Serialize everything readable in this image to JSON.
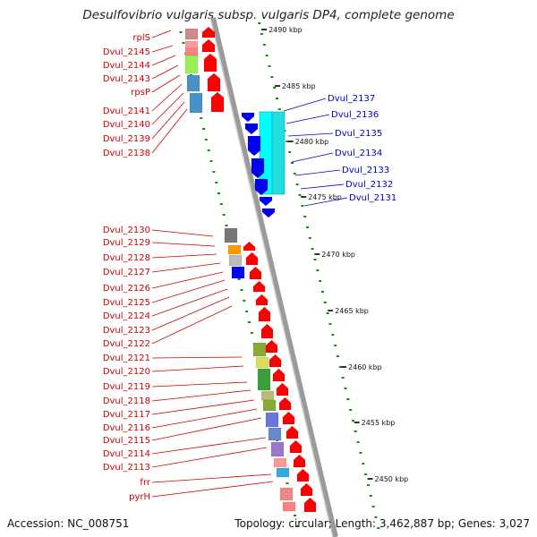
{
  "title": "Desulfovibrio vulgaris subsp. vulgaris DP4, complete genome",
  "footer": {
    "accession": "Accession: NC_008751",
    "stats": "Topology: circular; Length: 3,462,887 bp; Genes: 3,027"
  },
  "colors": {
    "forward": "#ff0000",
    "reverse": "#0000ee",
    "left_label": "#cc0000",
    "right_label": "#0000cc",
    "tick": "#009900",
    "backbone": "#888888"
  },
  "scale_ticks": [
    "2490 kbp",
    "2485 kbp",
    "2480 kbp",
    "2475 kbp",
    "2470 kbp",
    "2465 kbp",
    "2460 kbp",
    "2455 kbp",
    "2450 kbp"
  ],
  "left_labels": [
    "rplS",
    "Dvul_2145",
    "Dvul_2144",
    "Dvul_2143",
    "rpsP",
    "Dvul_2141",
    "Dvul_2140",
    "Dvul_2139",
    "Dvul_2138",
    "Dvul_2130",
    "Dvul_2129",
    "Dvul_2128",
    "Dvul_2127",
    "Dvul_2126",
    "Dvul_2125",
    "Dvul_2124",
    "Dvul_2123",
    "Dvul_2122",
    "Dvul_2121",
    "Dvul_2120",
    "Dvul_2119",
    "Dvul_2118",
    "Dvul_2117",
    "Dvul_2116",
    "Dvul_2115",
    "Dvul_2114",
    "Dvul_2113",
    "frr",
    "pyrH"
  ],
  "right_labels": [
    "Dvul_2137",
    "Dvul_2136",
    "Dvul_2135",
    "Dvul_2134",
    "Dvul_2133",
    "Dvul_2132",
    "Dvul_2131"
  ]
}
